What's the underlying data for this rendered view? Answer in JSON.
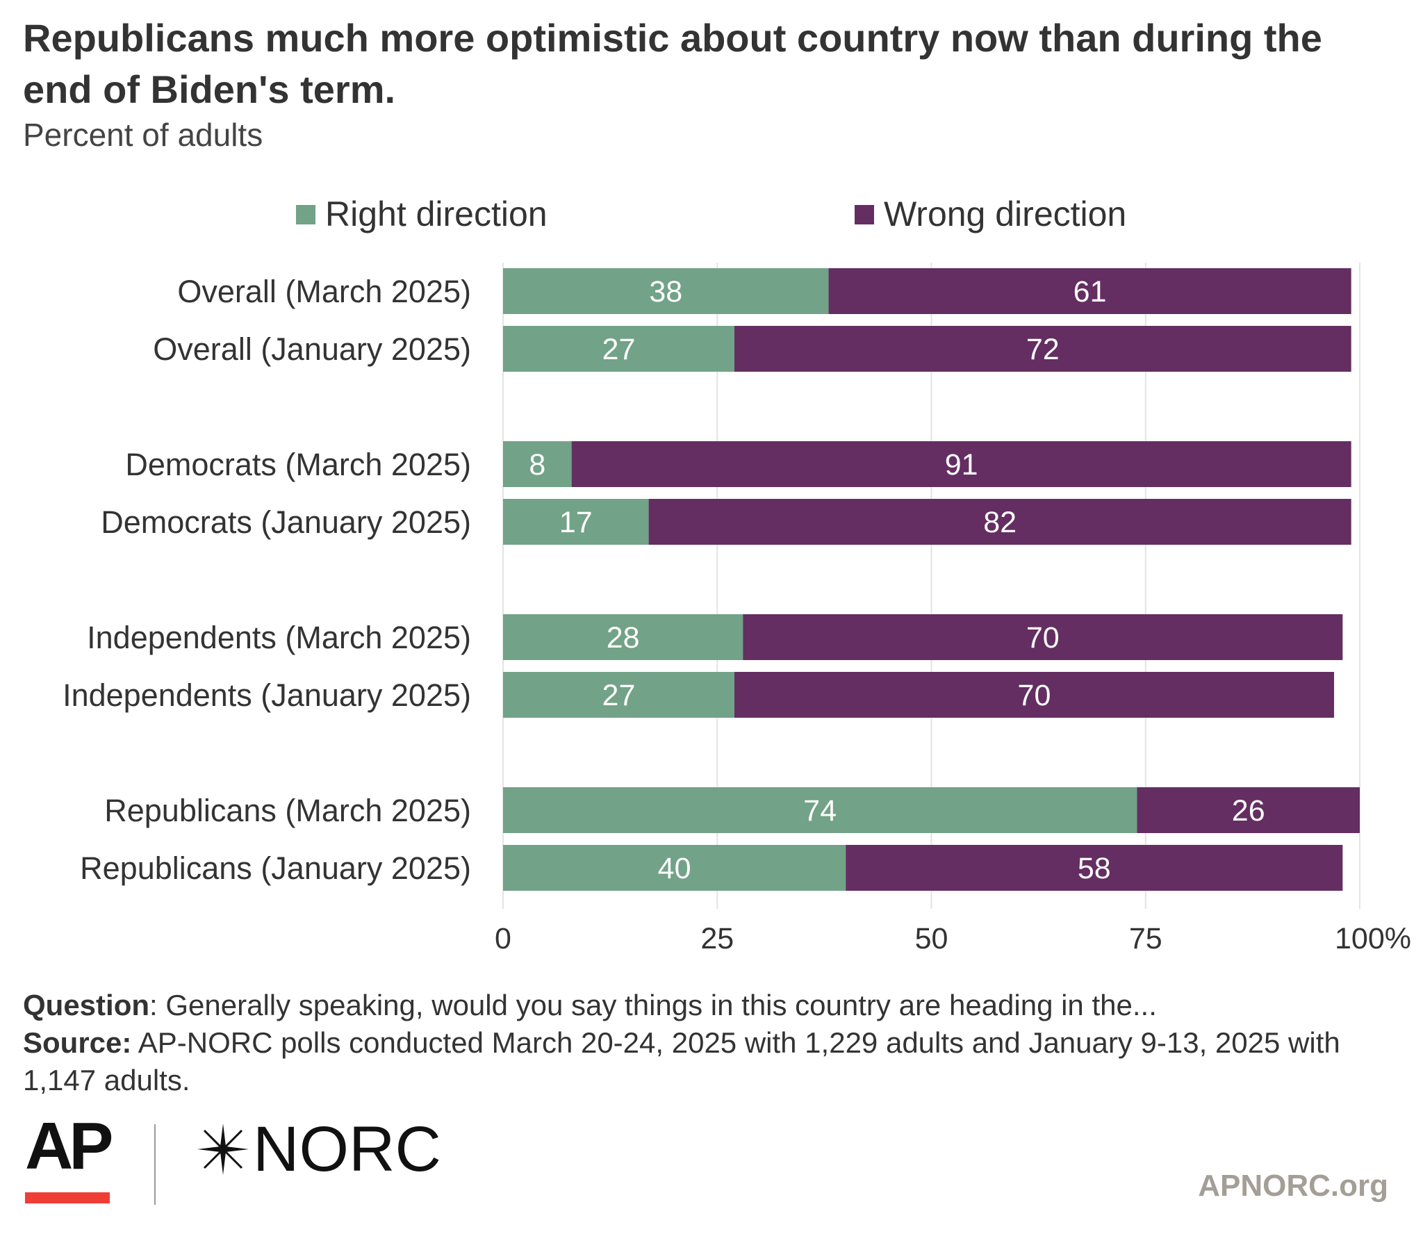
{
  "header": {
    "title": "Republicans much more optimistic about country now than during the end of Biden's term.",
    "subtitle": "Percent of adults"
  },
  "chart_data": {
    "type": "bar",
    "orientation": "horizontal",
    "stacked": true,
    "categories": [
      "Overall (March 2025)",
      "Overall (January 2025)",
      "Democrats (March 2025)",
      "Democrats (January 2025)",
      "Independents (March 2025)",
      "Independents (January 2025)",
      "Republicans (March 2025)",
      "Republicans (January 2025)"
    ],
    "series": [
      {
        "name": "Right direction",
        "color": "#72a287",
        "values": [
          38,
          27,
          8,
          17,
          28,
          27,
          74,
          40
        ]
      },
      {
        "name": "Wrong direction",
        "color": "#642e62",
        "values": [
          61,
          72,
          91,
          82,
          70,
          70,
          26,
          58
        ]
      }
    ],
    "xlim": [
      0,
      100
    ],
    "x_ticks": [
      "0",
      "25",
      "50",
      "75",
      "100%"
    ],
    "grid": true,
    "legend_position": "top"
  },
  "footer": {
    "question_label": "Question",
    "question_text": ": Generally speaking, would you say things in this country are heading in the...",
    "source_label": "Source:",
    "source_text": " AP-NORC polls conducted March 20-24, 2025 with 1,229 adults and January 9-13, 2025 with 1,147 adults."
  },
  "branding": {
    "ap_logo": "AP",
    "norc_logo": "NORC",
    "site": "APNORC.org",
    "ap_red": "#ef3e36"
  }
}
